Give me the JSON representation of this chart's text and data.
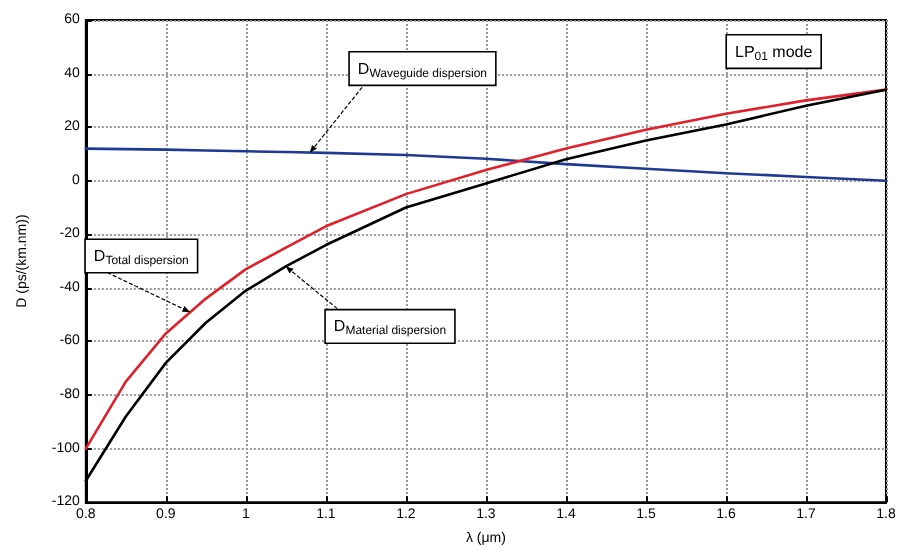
{
  "chart_data": {
    "type": "line",
    "xlabel": "λ (μm)",
    "ylabel": "D (ps/(km.nm))",
    "x": [
      0.8,
      0.85,
      0.9,
      0.95,
      1.0,
      1.05,
      1.1,
      1.2,
      1.3,
      1.4,
      1.5,
      1.6,
      1.7,
      1.8
    ],
    "series": [
      {
        "color": "#1f3a93",
        "values": [
          12,
          11.8,
          11.6,
          11.3,
          11,
          10.7,
          10.4,
          9.6,
          8.2,
          6.2,
          4.5,
          2.8,
          1.4,
          0
        ]
      },
      {
        "color": "#e0202a",
        "values": [
          -100,
          -75,
          -57,
          -44,
          -33,
          -25,
          -17,
          -5,
          4,
          12,
          19,
          25,
          30,
          34
        ]
      },
      {
        "color": "#000000",
        "values": [
          -112,
          -88,
          -68,
          -53,
          -41,
          -32,
          -24,
          -10,
          -1,
          8,
          15,
          21,
          28,
          34
        ]
      }
    ],
    "xlim": [
      0.8,
      1.8
    ],
    "xticks": [
      0.8,
      0.9,
      1,
      1.1,
      1.2,
      1.3,
      1.4,
      1.5,
      1.6,
      1.7,
      1.8
    ],
    "ylim": [
      -120,
      60
    ],
    "yticks": [
      -120,
      -100,
      -80,
      -60,
      -40,
      -20,
      0,
      20,
      40,
      60
    ],
    "grid": true,
    "marker": "none",
    "line_style": "solid",
    "annotations": [
      {
        "text": "D$_{Waveguide dispersion}$",
        "x": 1.08,
        "y": 10.5
      },
      {
        "text": "D$_{Total dispersion}$",
        "x": 0.93,
        "y": -49
      },
      {
        "text": "D$_{Material dispersion}$",
        "x": 1.05,
        "y": -32
      },
      "LP$_{01}$ mode"
    ]
  }
}
